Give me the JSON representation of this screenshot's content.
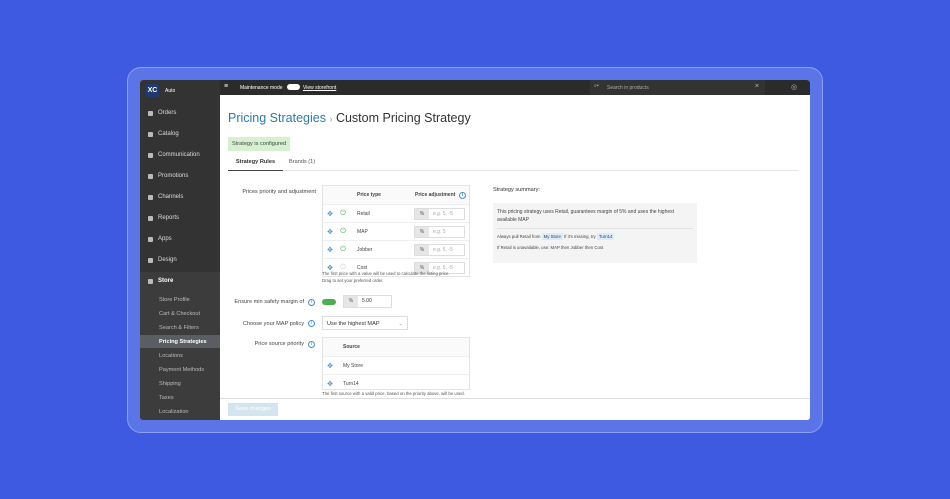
{
  "sidebar": {
    "logo": "XC",
    "store_name": "Auto",
    "items": [
      {
        "label": "Orders"
      },
      {
        "label": "Catalog"
      },
      {
        "label": "Communication"
      },
      {
        "label": "Promotions"
      },
      {
        "label": "Channels"
      },
      {
        "label": "Reports"
      },
      {
        "label": "Apps"
      },
      {
        "label": "Design"
      },
      {
        "label": "Store"
      }
    ],
    "store_sub": [
      {
        "label": "Store Profile"
      },
      {
        "label": "Cart & Checkout"
      },
      {
        "label": "Search & Filters"
      },
      {
        "label": "Pricing Strategies",
        "active": true
      },
      {
        "label": "Locations"
      },
      {
        "label": "Payment Methods"
      },
      {
        "label": "Shipping"
      },
      {
        "label": "Taxes"
      },
      {
        "label": "Localization"
      }
    ]
  },
  "topbar": {
    "maintenance": "Maintenance mode",
    "storefront": "View storefront",
    "search_placeholder": "Search in products"
  },
  "header": {
    "breadcrumb": "Pricing Strategies",
    "separator": "›",
    "title": "Custom Pricing Strategy",
    "status": "Strategy is configured"
  },
  "tabs": [
    {
      "label": "Strategy Rules",
      "active": true
    },
    {
      "label": "Brands (1)"
    }
  ],
  "prices": {
    "label": "Prices priority and adjustment",
    "col_type": "Price type",
    "col_adj": "Price adjustment",
    "rows": [
      {
        "type": "Retail",
        "unit": "%",
        "placeholder": "e.g. 5, -5",
        "enabled": true
      },
      {
        "type": "MAP",
        "unit": "%",
        "placeholder": "e.g. 5",
        "enabled": true
      },
      {
        "type": "Jobber",
        "unit": "%",
        "placeholder": "e.g. 5, -5",
        "enabled": true
      },
      {
        "type": "Cost",
        "unit": "%",
        "placeholder": "e.g. 5, -5",
        "enabled": false
      }
    ],
    "note1": "The first price with a value will be used to calculate the listing price.",
    "note2": "Drag to set your preferred order."
  },
  "margin": {
    "label": "Ensure min safety margin of",
    "unit": "%",
    "value": "5.00",
    "enabled": true
  },
  "map": {
    "label": "Choose your MAP policy",
    "value": "Use the highest MAP"
  },
  "source": {
    "label": "Price source priority",
    "col": "Source",
    "rows": [
      "My Store",
      "Turn14"
    ],
    "note": "The first source with a valid price, based on the priority above, will be used."
  },
  "summary": {
    "title": "Strategy summary:",
    "text": "This pricing strategy uses Retail, guarantees margin of 5% and uses the highest available MAP",
    "pull_pre": "Always pull Retail from",
    "pull_a": "My Store",
    "pull_mid": "If it's missing, try",
    "pull_b": "Turn14",
    "fallback": "If Retail is unavailable, use: MAP then Jobber then Cost"
  },
  "footer": {
    "save": "Save changes"
  },
  "colors": {
    "accent": "#2f7aa8",
    "success": "#4caf50",
    "background": "#3d5ae0"
  }
}
